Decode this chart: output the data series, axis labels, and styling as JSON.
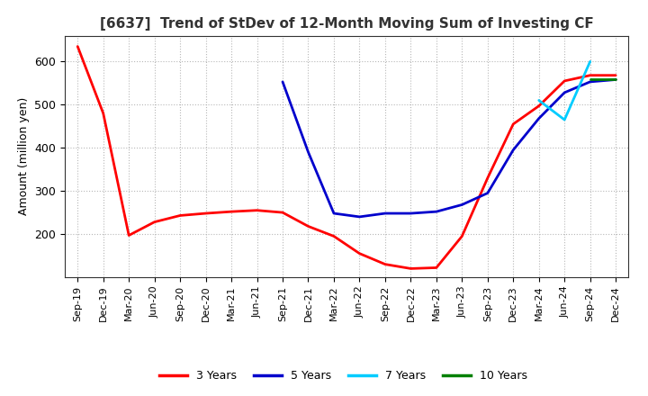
{
  "title": "[6637]  Trend of StDev of 12-Month Moving Sum of Investing CF",
  "ylabel": "Amount (million yen)",
  "background_color": "#ffffff",
  "grid_color": "#b0b0b0",
  "x_labels": [
    "Sep-19",
    "Dec-19",
    "Mar-20",
    "Jun-20",
    "Sep-20",
    "Dec-20",
    "Mar-21",
    "Jun-21",
    "Sep-21",
    "Dec-21",
    "Mar-22",
    "Jun-22",
    "Sep-22",
    "Dec-22",
    "Mar-23",
    "Jun-23",
    "Sep-23",
    "Dec-23",
    "Mar-24",
    "Jun-24",
    "Sep-24",
    "Dec-24"
  ],
  "ylim": [
    100,
    660
  ],
  "yticks": [
    200,
    300,
    400,
    500,
    600
  ],
  "series": {
    "3 Years": {
      "color": "#ff0000",
      "data_y": [
        635,
        480,
        197,
        228,
        243,
        248,
        252,
        255,
        250,
        218,
        195,
        155,
        130,
        120,
        122,
        195,
        330,
        455,
        497,
        555,
        568,
        568
      ]
    },
    "5 Years": {
      "color": "#0000cc",
      "data_y": [
        null,
        null,
        null,
        null,
        null,
        null,
        null,
        null,
        553,
        390,
        248,
        240,
        248,
        248,
        252,
        268,
        295,
        395,
        468,
        528,
        553,
        558
      ]
    },
    "7 Years": {
      "color": "#00ccff",
      "data_y": [
        null,
        null,
        null,
        null,
        null,
        null,
        null,
        null,
        null,
        null,
        null,
        null,
        null,
        null,
        null,
        null,
        null,
        null,
        510,
        465,
        600,
        null
      ]
    },
    "10 Years": {
      "color": "#008000",
      "data_y": [
        null,
        null,
        null,
        null,
        null,
        null,
        null,
        null,
        null,
        null,
        null,
        null,
        null,
        null,
        null,
        null,
        null,
        null,
        null,
        null,
        558,
        558
      ]
    }
  },
  "title_fontsize": 11,
  "tick_fontsize": 8,
  "ylabel_fontsize": 9,
  "legend_fontsize": 9,
  "linewidth": 2.0
}
